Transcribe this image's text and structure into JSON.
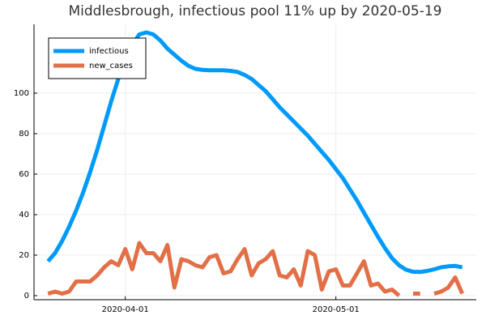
{
  "chart_data": {
    "type": "line",
    "title": "Middlesbrough, infectious pool 11% up by 2020-05-19",
    "x_start": "2020-03-21",
    "xlim": [
      "2020-03-19",
      "2020-05-21"
    ],
    "xticks": [
      "2020-04-01",
      "2020-05-01"
    ],
    "ylim": [
      -2,
      134
    ],
    "yticks": [
      0,
      20,
      40,
      60,
      80,
      100
    ],
    "grid": true,
    "legend": "top-left",
    "series": [
      {
        "name": "infectious",
        "color": "#009af9",
        "values": [
          17,
          21,
          27,
          34,
          42,
          51,
          61,
          72,
          84,
          96,
          107,
          117,
          124,
          129,
          130,
          129,
          126,
          122,
          119,
          116,
          113.5,
          112,
          111.5,
          111.3,
          111.3,
          111.3,
          111,
          110.5,
          109,
          107,
          104,
          101,
          97,
          93,
          89.5,
          86,
          82.5,
          79,
          75,
          71,
          67,
          62.5,
          58,
          52.5,
          47,
          41,
          35,
          29,
          23.5,
          18.5,
          15,
          12.8,
          11.8,
          11.7,
          12.2,
          13,
          14,
          14.5,
          14.7,
          14
        ]
      },
      {
        "name": "new_cases",
        "color": "#e26f46",
        "values": [
          1,
          2,
          1,
          2,
          7,
          7,
          7,
          10,
          14,
          17,
          15,
          23,
          13,
          26,
          21,
          21,
          17,
          25,
          4,
          18,
          17,
          15,
          14,
          19,
          20,
          11,
          12,
          18,
          23,
          10,
          16,
          18,
          22,
          10,
          9,
          13,
          5,
          22,
          20,
          3,
          12,
          13,
          5,
          5,
          11,
          17,
          5,
          6,
          2,
          3,
          0,
          null,
          1,
          1,
          null,
          1,
          2,
          4,
          9,
          1
        ]
      }
    ]
  }
}
